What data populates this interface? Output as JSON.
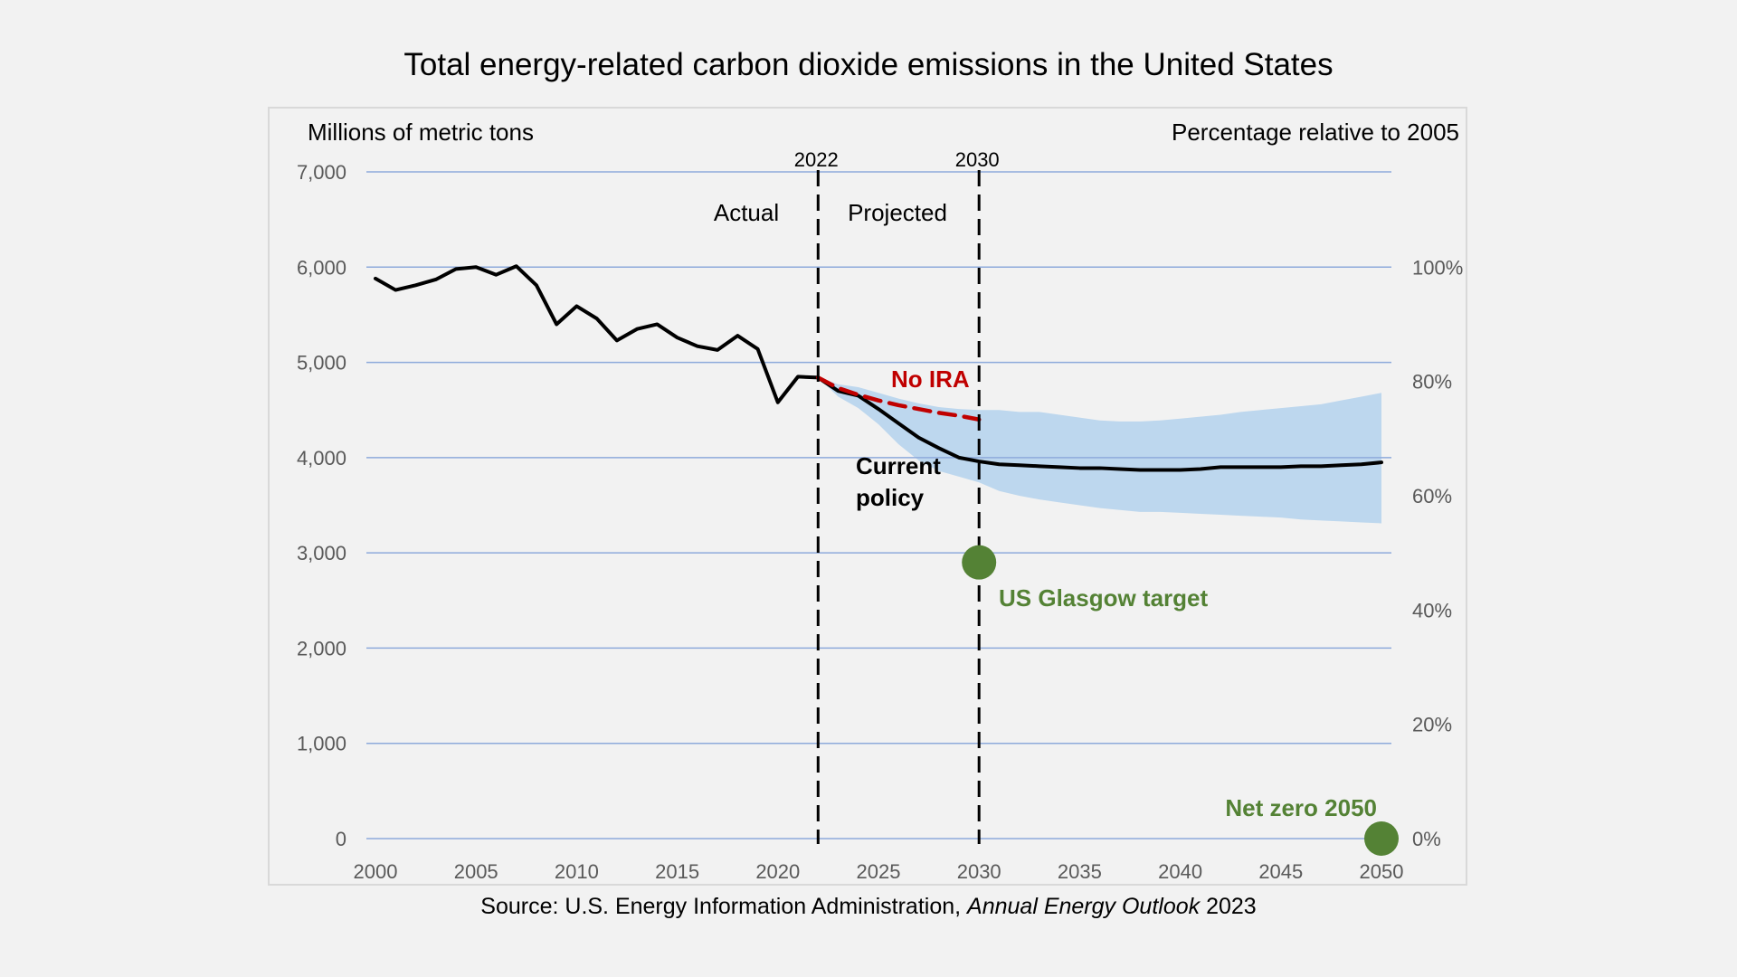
{
  "chart_data": {
    "type": "line",
    "title": "Total energy-related carbon dioxide emissions in the United States",
    "ylabel_left": "Millions of metric tons",
    "ylabel_right": "Percentage relative to 2005",
    "x_ticks": [
      "2000",
      "2005",
      "2010",
      "2015",
      "2020",
      "2025",
      "2030",
      "2035",
      "2040",
      "2045",
      "2050"
    ],
    "y_ticks": [
      "0",
      "1,000",
      "2,000",
      "3,000",
      "4,000",
      "5,000",
      "6,000",
      "7,000"
    ],
    "y2_ticks": [
      "0%",
      "20%",
      "40%",
      "60%",
      "80%",
      "100%"
    ],
    "xlim": [
      2000,
      2050
    ],
    "ylim": [
      0,
      7000
    ],
    "grid": true,
    "markers": [
      {
        "label": "2022",
        "x": 2022
      },
      {
        "label": "2030",
        "x": 2030
      }
    ],
    "region_labels": {
      "actual": "Actual",
      "projected": "Projected"
    },
    "series": [
      {
        "name": "Current policy",
        "color": "#000000",
        "x": [
          2000,
          2001,
          2002,
          2003,
          2004,
          2005,
          2006,
          2007,
          2008,
          2009,
          2010,
          2011,
          2012,
          2013,
          2014,
          2015,
          2016,
          2017,
          2018,
          2019,
          2020,
          2021,
          2022,
          2023,
          2024,
          2025,
          2026,
          2027,
          2028,
          2029,
          2030,
          2031,
          2032,
          2033,
          2034,
          2035,
          2036,
          2037,
          2038,
          2039,
          2040,
          2041,
          2042,
          2043,
          2044,
          2045,
          2046,
          2047,
          2048,
          2049,
          2050
        ],
        "values": [
          5880,
          5760,
          5810,
          5870,
          5980,
          6000,
          5920,
          6010,
          5810,
          5400,
          5590,
          5460,
          5230,
          5350,
          5400,
          5260,
          5170,
          5130,
          5280,
          5140,
          4580,
          4850,
          4840,
          4700,
          4650,
          4510,
          4360,
          4210,
          4100,
          4000,
          3960,
          3930,
          3920,
          3910,
          3900,
          3890,
          3890,
          3880,
          3870,
          3870,
          3870,
          3880,
          3900,
          3900,
          3900,
          3900,
          3910,
          3910,
          3920,
          3930,
          3950
        ]
      },
      {
        "name": "No IRA",
        "color": "#c00000",
        "dashed": true,
        "x": [
          2022,
          2023,
          2024,
          2025,
          2026,
          2027,
          2028,
          2029,
          2030
        ],
        "values": [
          4840,
          4730,
          4660,
          4600,
          4550,
          4510,
          4470,
          4440,
          4400
        ]
      }
    ],
    "uncertainty_band": {
      "color": "#bdd7ee",
      "x": [
        2022,
        2023,
        2024,
        2025,
        2026,
        2027,
        2028,
        2029,
        2030,
        2031,
        2032,
        2033,
        2034,
        2035,
        2036,
        2037,
        2038,
        2039,
        2040,
        2041,
        2042,
        2043,
        2044,
        2045,
        2046,
        2047,
        2048,
        2049,
        2050
      ],
      "upper": [
        4840,
        4770,
        4740,
        4680,
        4620,
        4570,
        4530,
        4510,
        4500,
        4500,
        4480,
        4480,
        4450,
        4420,
        4390,
        4380,
        4380,
        4390,
        4410,
        4430,
        4450,
        4480,
        4500,
        4520,
        4540,
        4560,
        4600,
        4640,
        4680
      ],
      "lower": [
        4840,
        4640,
        4520,
        4350,
        4140,
        3970,
        3860,
        3800,
        3740,
        3650,
        3600,
        3560,
        3530,
        3500,
        3470,
        3450,
        3430,
        3430,
        3420,
        3410,
        3400,
        3390,
        3380,
        3370,
        3350,
        3340,
        3330,
        3320,
        3310
      ]
    },
    "targets": [
      {
        "label": "US Glasgow target",
        "x": 2030,
        "y": 2900,
        "color": "#548235"
      },
      {
        "label": "Net zero 2050",
        "x": 2050,
        "y": 0,
        "color": "#548235"
      }
    ],
    "labels": {
      "no_ira": "No IRA",
      "current_policy_1": "Current",
      "current_policy_2": "policy"
    },
    "colors": {
      "grid": "#8eaadb",
      "axis_text": "#595959",
      "background": "#f2f2f2"
    }
  },
  "source": {
    "prefix": "Source: U.S. Energy Information Administration, ",
    "italic": "Annual Energy Outlook",
    "suffix": " 2023"
  }
}
